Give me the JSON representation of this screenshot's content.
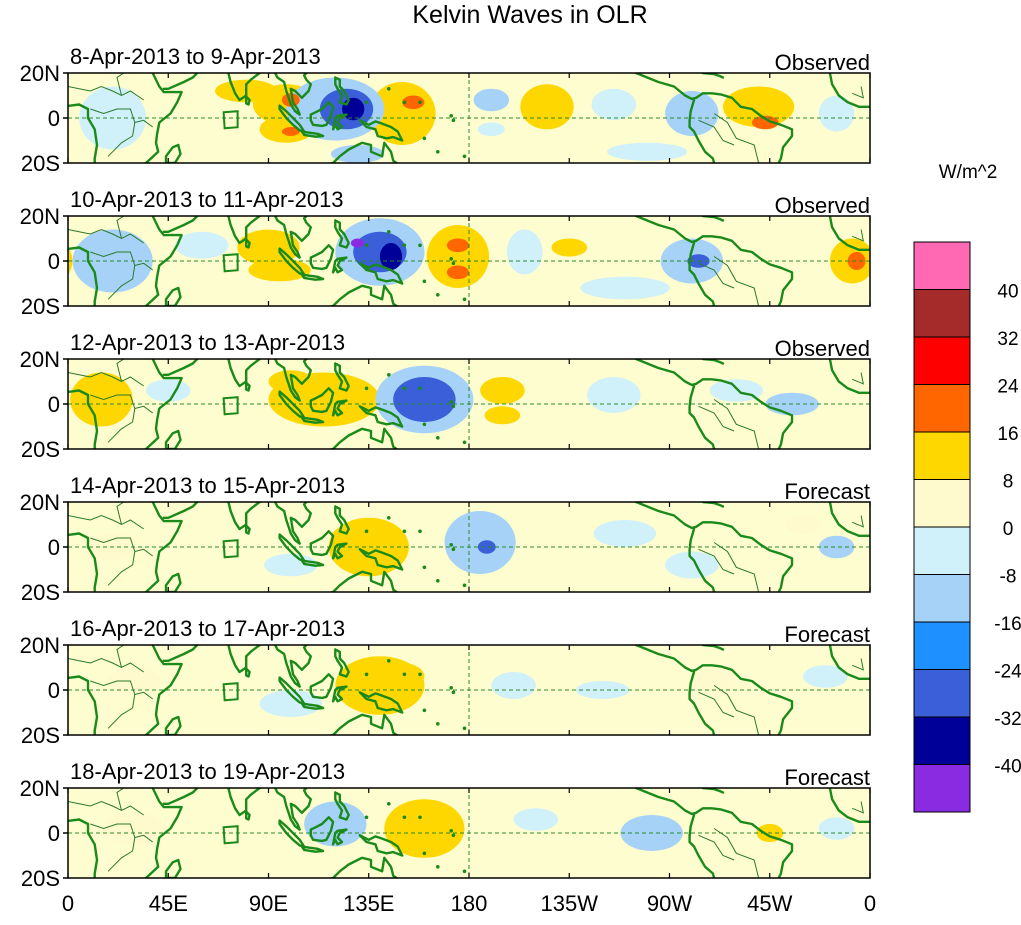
{
  "title": "Kelvin Waves in OLR",
  "colors": {
    "background": "#ffffff",
    "ocean_neutral": "#fefdd0",
    "coast": "#1a8a1a",
    "border": "#2a7a2a",
    "equator_line": "#2a8a2a",
    "frame": "#000000"
  },
  "x_axis": {
    "ticks": [
      "0",
      "45E",
      "90E",
      "135E",
      "180",
      "135W",
      "90W",
      "45W",
      "0"
    ],
    "range": [
      0,
      360
    ]
  },
  "y_axis": {
    "ticks": [
      "20N",
      "0",
      "20S"
    ],
    "range": [
      -20,
      20
    ]
  },
  "colorbar": {
    "units": "W/m^2",
    "labels": [
      "40",
      "32",
      "24",
      "16",
      "8",
      "0",
      "-8",
      "-16",
      "-24",
      "-32",
      "-40"
    ],
    "colors": [
      "#ff69b4",
      "#a52a2a",
      "#ff0000",
      "#ff6600",
      "#ffd700",
      "#fffacd",
      "#d0f0fa",
      "#a6d2f7",
      "#1e90ff",
      "#3a5fd9",
      "#000099",
      "#8a2be2"
    ]
  },
  "panels": [
    {
      "date": "8-Apr-2013 to 9-Apr-2013",
      "label": "Observed",
      "features": [
        {
          "lon": 80,
          "lat": 12,
          "rx": 14,
          "ry": 5,
          "v": 10
        },
        {
          "lon": 98,
          "lat": 6,
          "rx": 15,
          "ry": 9,
          "v": 14
        },
        {
          "lon": 98,
          "lat": -5,
          "rx": 12,
          "ry": 6,
          "v": 12
        },
        {
          "lon": 100,
          "lat": 8,
          "rx": 4,
          "ry": 3,
          "v": 20
        },
        {
          "lon": 100,
          "lat": -6,
          "rx": 4,
          "ry": 2,
          "v": 18
        },
        {
          "lon": 120,
          "lat": 4,
          "rx": 22,
          "ry": 14,
          "v": -14
        },
        {
          "lon": 125,
          "lat": 4,
          "rx": 12,
          "ry": 9,
          "v": -25
        },
        {
          "lon": 128,
          "lat": 4,
          "rx": 5,
          "ry": 5,
          "v": -33
        },
        {
          "lon": 150,
          "lat": 2,
          "rx": 15,
          "ry": 14,
          "v": 10
        },
        {
          "lon": 155,
          "lat": 7,
          "rx": 5,
          "ry": 3,
          "v": 18
        },
        {
          "lon": 150,
          "lat": -5,
          "rx": 10,
          "ry": 5,
          "v": 9
        },
        {
          "lon": 190,
          "lat": 8,
          "rx": 8,
          "ry": 5,
          "v": -10
        },
        {
          "lon": 190,
          "lat": -5,
          "rx": 6,
          "ry": 3,
          "v": -8
        },
        {
          "lon": 215,
          "lat": 5,
          "rx": 12,
          "ry": 10,
          "v": 9
        },
        {
          "lon": 245,
          "lat": 6,
          "rx": 10,
          "ry": 7,
          "v": -5
        },
        {
          "lon": 280,
          "lat": 2,
          "rx": 12,
          "ry": 10,
          "v": -12
        },
        {
          "lon": 310,
          "lat": 5,
          "rx": 16,
          "ry": 9,
          "v": 10
        },
        {
          "lon": 313,
          "lat": -2,
          "rx": 6,
          "ry": 3,
          "v": 18
        },
        {
          "lon": 345,
          "lat": 2,
          "rx": 8,
          "ry": 8,
          "v": -8
        },
        {
          "lon": 20,
          "lat": 0,
          "rx": 15,
          "ry": 14,
          "v": -4
        },
        {
          "lon": 260,
          "lat": -15,
          "rx": 18,
          "ry": 4,
          "v": -6
        },
        {
          "lon": 130,
          "lat": -16,
          "rx": 12,
          "ry": 4,
          "v": -9
        }
      ]
    },
    {
      "date": "10-Apr-2013 to 11-Apr-2013",
      "label": "Observed",
      "features": [
        {
          "lon": 20,
          "lat": 0,
          "rx": 18,
          "ry": 14,
          "v": -9
        },
        {
          "lon": 60,
          "lat": 7,
          "rx": 12,
          "ry": 6,
          "v": -8
        },
        {
          "lon": 90,
          "lat": 6,
          "rx": 14,
          "ry": 8,
          "v": 10
        },
        {
          "lon": 95,
          "lat": -4,
          "rx": 14,
          "ry": 5,
          "v": 9
        },
        {
          "lon": 140,
          "lat": 4,
          "rx": 20,
          "ry": 15,
          "v": -14
        },
        {
          "lon": 140,
          "lat": 4,
          "rx": 12,
          "ry": 9,
          "v": -25
        },
        {
          "lon": 145,
          "lat": 2,
          "rx": 5,
          "ry": 6,
          "v": -33
        },
        {
          "lon": 130,
          "lat": 8,
          "rx": 3,
          "ry": 2,
          "v": -41
        },
        {
          "lon": 175,
          "lat": 2,
          "rx": 14,
          "ry": 14,
          "v": 10
        },
        {
          "lon": 175,
          "lat": 7,
          "rx": 5,
          "ry": 3,
          "v": 18
        },
        {
          "lon": 175,
          "lat": -5,
          "rx": 5,
          "ry": 3,
          "v": 18
        },
        {
          "lon": 205,
          "lat": 4,
          "rx": 8,
          "ry": 10,
          "v": -8
        },
        {
          "lon": 225,
          "lat": 6,
          "rx": 8,
          "ry": 4,
          "v": 8
        },
        {
          "lon": 280,
          "lat": 0,
          "rx": 14,
          "ry": 10,
          "v": -12
        },
        {
          "lon": 283,
          "lat": 0,
          "rx": 5,
          "ry": 3,
          "v": -25
        },
        {
          "lon": 352,
          "lat": 0,
          "rx": 10,
          "ry": 10,
          "v": 10
        },
        {
          "lon": 354,
          "lat": 0,
          "rx": 4,
          "ry": 4,
          "v": 20
        },
        {
          "lon": 250,
          "lat": -12,
          "rx": 20,
          "ry": 5,
          "v": -6
        }
      ]
    },
    {
      "date": "12-Apr-2013 to 13-Apr-2013",
      "label": "Observed",
      "features": [
        {
          "lon": 15,
          "lat": 2,
          "rx": 14,
          "ry": 12,
          "v": 10
        },
        {
          "lon": 45,
          "lat": 6,
          "rx": 10,
          "ry": 5,
          "v": -6
        },
        {
          "lon": 115,
          "lat": 2,
          "rx": 25,
          "ry": 12,
          "v": 9
        },
        {
          "lon": 100,
          "lat": 10,
          "rx": 10,
          "ry": 5,
          "v": 12
        },
        {
          "lon": 160,
          "lat": 2,
          "rx": 22,
          "ry": 15,
          "v": -14
        },
        {
          "lon": 160,
          "lat": 2,
          "rx": 14,
          "ry": 10,
          "v": -25
        },
        {
          "lon": 195,
          "lat": 6,
          "rx": 10,
          "ry": 6,
          "v": 8
        },
        {
          "lon": 195,
          "lat": -5,
          "rx": 8,
          "ry": 4,
          "v": 8
        },
        {
          "lon": 245,
          "lat": 4,
          "rx": 12,
          "ry": 8,
          "v": -6
        },
        {
          "lon": 300,
          "lat": 6,
          "rx": 12,
          "ry": 5,
          "v": -6
        },
        {
          "lon": 325,
          "lat": 0,
          "rx": 12,
          "ry": 5,
          "v": -9
        }
      ]
    },
    {
      "date": "14-Apr-2013 to 15-Apr-2013",
      "label": "Forecast",
      "features": [
        {
          "lon": 135,
          "lat": 0,
          "rx": 18,
          "ry": 13,
          "v": 9
        },
        {
          "lon": 128,
          "lat": 4,
          "rx": 10,
          "ry": 6,
          "v": 11
        },
        {
          "lon": 185,
          "lat": 2,
          "rx": 16,
          "ry": 14,
          "v": -12
        },
        {
          "lon": 188,
          "lat": 0,
          "rx": 4,
          "ry": 3,
          "v": -25
        },
        {
          "lon": 100,
          "lat": -8,
          "rx": 12,
          "ry": 5,
          "v": -8
        },
        {
          "lon": 20,
          "lat": 0,
          "rx": 12,
          "ry": 6,
          "v": 6
        },
        {
          "lon": 250,
          "lat": 6,
          "rx": 14,
          "ry": 6,
          "v": -6
        },
        {
          "lon": 280,
          "lat": -8,
          "rx": 12,
          "ry": 6,
          "v": -6
        },
        {
          "lon": 345,
          "lat": 0,
          "rx": 8,
          "ry": 5,
          "v": -9
        },
        {
          "lon": 330,
          "lat": 10,
          "rx": 8,
          "ry": 4,
          "v": 6
        }
      ]
    },
    {
      "date": "16-Apr-2013 to 17-Apr-2013",
      "label": "Forecast",
      "features": [
        {
          "lon": 140,
          "lat": 2,
          "rx": 20,
          "ry": 13,
          "v": 9
        },
        {
          "lon": 150,
          "lat": 6,
          "rx": 10,
          "ry": 6,
          "v": 11
        },
        {
          "lon": 100,
          "lat": -6,
          "rx": 14,
          "ry": 6,
          "v": -8
        },
        {
          "lon": 200,
          "lat": 2,
          "rx": 10,
          "ry": 6,
          "v": -8
        },
        {
          "lon": 240,
          "lat": 0,
          "rx": 12,
          "ry": 4,
          "v": -8
        },
        {
          "lon": 30,
          "lat": 4,
          "rx": 12,
          "ry": 6,
          "v": 6
        },
        {
          "lon": 290,
          "lat": 4,
          "rx": 10,
          "ry": 6,
          "v": 6
        },
        {
          "lon": 340,
          "lat": 6,
          "rx": 10,
          "ry": 5,
          "v": -6
        }
      ]
    },
    {
      "date": "18-Apr-2013 to 19-Apr-2013",
      "label": "Forecast",
      "features": [
        {
          "lon": 160,
          "lat": 2,
          "rx": 18,
          "ry": 13,
          "v": 10
        },
        {
          "lon": 165,
          "lat": 4,
          "rx": 10,
          "ry": 6,
          "v": 12
        },
        {
          "lon": 120,
          "lat": 4,
          "rx": 14,
          "ry": 10,
          "v": -9
        },
        {
          "lon": 262,
          "lat": 0,
          "rx": 14,
          "ry": 8,
          "v": -9
        },
        {
          "lon": 315,
          "lat": 0,
          "rx": 6,
          "ry": 4,
          "v": 9
        },
        {
          "lon": 30,
          "lat": 2,
          "rx": 14,
          "ry": 7,
          "v": 5
        },
        {
          "lon": 210,
          "lat": 6,
          "rx": 10,
          "ry": 5,
          "v": -6
        },
        {
          "lon": 345,
          "lat": 2,
          "rx": 8,
          "ry": 5,
          "v": -6
        }
      ]
    }
  ]
}
